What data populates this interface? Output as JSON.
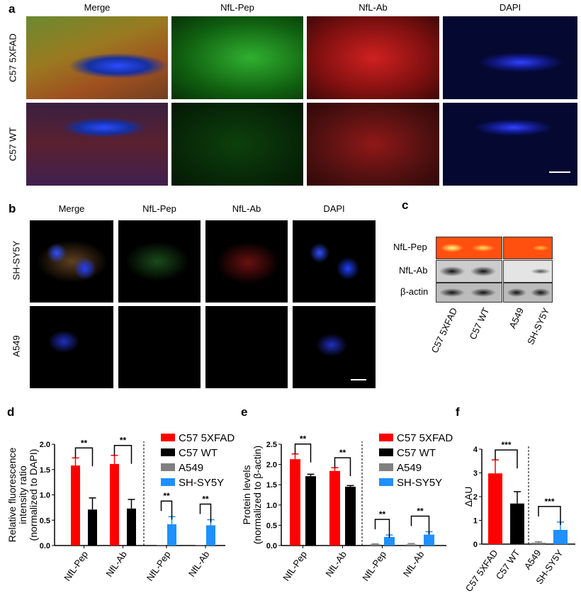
{
  "panels": {
    "a": {
      "label": "a",
      "columns": [
        "Merge",
        "NfL-Pep",
        "NfL-Ab",
        "DAPI"
      ],
      "rows": [
        "C57 5XFAD",
        "C57 WT"
      ]
    },
    "b": {
      "label": "b",
      "columns": [
        "Merge",
        "NfL-Pep",
        "NfL-Ab",
        "DAPI"
      ],
      "rows": [
        "SH-SY5Y",
        "A549"
      ]
    },
    "c": {
      "label": "c",
      "rows": [
        "NfL-Pep",
        "NfL-Ab",
        "β-actin"
      ],
      "lanes": [
        "C57 5XFAD",
        "C57 WT",
        "A549",
        "SH-SY5Y"
      ]
    },
    "d": {
      "label": "d"
    },
    "e": {
      "label": "e"
    },
    "f": {
      "label": "f"
    }
  },
  "colors": {
    "C57 5XFAD": "#ff0000",
    "C57 WT": "#000000",
    "A549": "#808080",
    "SH-SY5Y": "#1e90ff"
  },
  "chart_data": [
    {
      "id": "d",
      "type": "bar",
      "ylabel": "Relative fluorescence intensity ratio (normalized to DAPI)",
      "ylabel_lines": [
        "Relative fluorescence",
        "intensity ratio",
        "(normalized to DAPI)"
      ],
      "ylim": [
        0,
        2.0
      ],
      "yticks": [
        "0.0",
        "0.5",
        "1.0",
        "1.5",
        "2.0"
      ],
      "legend": [
        "C57 5XFAD",
        "C57 WT",
        "A549",
        "SH-SY5Y"
      ],
      "legend_position": "top-right",
      "groups": [
        {
          "label": "NfL-Pep",
          "bars": [
            {
              "series": "C57 5XFAD",
              "value": 1.58,
              "error": 0.15
            },
            {
              "series": "C57 WT",
              "value": 0.71,
              "error": 0.23
            }
          ],
          "sig": "**"
        },
        {
          "label": "NfL-Ab",
          "bars": [
            {
              "series": "C57 5XFAD",
              "value": 1.61,
              "error": 0.17
            },
            {
              "series": "C57 WT",
              "value": 0.73,
              "error": 0.18
            }
          ],
          "sig": "**"
        },
        {
          "label": "NfL-Pep",
          "bars": [
            {
              "series": "A549",
              "value": 0.01,
              "error": 0.0
            },
            {
              "series": "SH-SY5Y",
              "value": 0.42,
              "error": 0.15
            }
          ],
          "sig": "**"
        },
        {
          "label": "NfL-Ab",
          "bars": [
            {
              "series": "A549",
              "value": 0.01,
              "error": 0.0
            },
            {
              "series": "SH-SY5Y",
              "value": 0.4,
              "error": 0.11
            }
          ],
          "sig": "**"
        }
      ]
    },
    {
      "id": "e",
      "type": "bar",
      "ylabel": "Protein levels (normalized to β-actin)",
      "ylabel_lines": [
        "Protein levels",
        "(normalized to β-actin)"
      ],
      "ylim": [
        0,
        2.5
      ],
      "yticks": [
        "0.0",
        "0.5",
        "1.0",
        "1.5",
        "2.0",
        "2.5"
      ],
      "legend": [
        "C57 5XFAD",
        "C57 WT",
        "A549",
        "SH-SY5Y"
      ],
      "legend_position": "top-right",
      "groups": [
        {
          "label": "NfL-Pep",
          "bars": [
            {
              "series": "C57 5XFAD",
              "value": 2.13,
              "error": 0.13
            },
            {
              "series": "C57 WT",
              "value": 1.71,
              "error": 0.05
            }
          ],
          "sig": "**"
        },
        {
          "label": "NfL-Ab",
          "bars": [
            {
              "series": "C57 5XFAD",
              "value": 1.84,
              "error": 0.08
            },
            {
              "series": "C57 WT",
              "value": 1.45,
              "error": 0.03
            }
          ],
          "sig": "**"
        },
        {
          "label": "NfL-Pep",
          "bars": [
            {
              "series": "A549",
              "value": 0.03,
              "error": 0.01
            },
            {
              "series": "SH-SY5Y",
              "value": 0.21,
              "error": 0.05
            }
          ],
          "sig": "**"
        },
        {
          "label": "NfL-Ab",
          "bars": [
            {
              "series": "A549",
              "value": 0.03,
              "error": 0.02
            },
            {
              "series": "SH-SY5Y",
              "value": 0.27,
              "error": 0.07
            }
          ],
          "sig": "**"
        }
      ]
    },
    {
      "id": "f",
      "type": "bar",
      "ylabel": "ΔAU",
      "ylabel_lines": [
        "ΔAU"
      ],
      "ylim": [
        0,
        4
      ],
      "yticks": [
        "0",
        "1",
        "2",
        "3",
        "4"
      ],
      "legend": [],
      "xticks": [
        "C57 5XFAD",
        "C57 WT",
        "A549",
        "SH-SY5Y"
      ],
      "groups": [
        {
          "label": "",
          "bars": [
            {
              "series": "C57 5XFAD",
              "value": 2.98,
              "error": 0.57
            },
            {
              "series": "C57 WT",
              "value": 1.71,
              "error": 0.5
            }
          ],
          "sig": "***"
        },
        {
          "label": "",
          "bars": [
            {
              "series": "A549",
              "value": 0.06,
              "error": 0.04
            },
            {
              "series": "SH-SY5Y",
              "value": 0.6,
              "error": 0.33
            }
          ],
          "sig": "***"
        }
      ]
    }
  ]
}
